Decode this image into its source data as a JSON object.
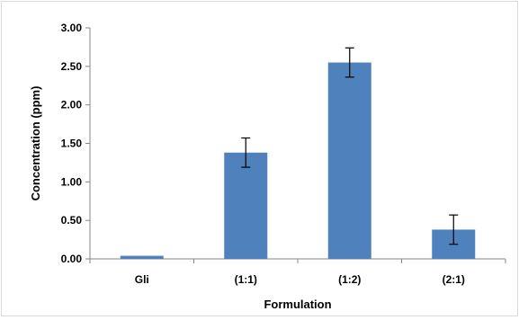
{
  "chart_data": {
    "type": "bar",
    "title": "",
    "xlabel": "Formulation",
    "ylabel": "Concentration (ppm)",
    "categories": [
      "Gli",
      "(1:1)",
      "(1:2)",
      "(2:1)"
    ],
    "series": [
      {
        "values": [
          0.04,
          1.38,
          2.55,
          0.38
        ],
        "error": [
          0.0,
          0.19,
          0.19,
          0.19
        ],
        "color": "#4f81bd"
      }
    ],
    "ylim": [
      0,
      3.0
    ],
    "yticks": [
      "0.00",
      "0.50",
      "1.00",
      "1.50",
      "2.00",
      "2.50",
      "3.00"
    ],
    "grid": false,
    "legend": "none"
  }
}
